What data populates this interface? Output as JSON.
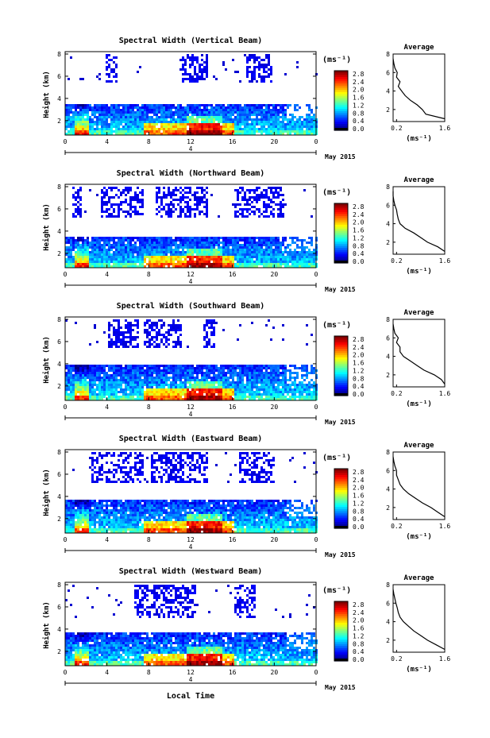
{
  "figure": {
    "xlabel": "Local Time",
    "date_label": "May 2015",
    "day_label": "4",
    "ylabel": "Height (km)",
    "colorbar_unit": "(ms⁻¹)",
    "avg_title": "Average",
    "avg_xlabel": "(ms⁻¹)"
  },
  "chart_data": [
    {
      "type": "heatmap",
      "title": "Spectral Width (Vertical Beam)",
      "xlabel": "Local Time",
      "ylabel": "Height (km)",
      "xlim": [
        0,
        24
      ],
      "ylim": [
        0.7,
        8
      ],
      "xticks": [
        "0",
        "4",
        "8",
        "12",
        "16",
        "20",
        "0"
      ],
      "yticks": [
        "2",
        "4",
        "6",
        "8"
      ],
      "colorbar": {
        "label": "(ms⁻¹)",
        "range": [
          0,
          2.8
        ],
        "ticks": [
          "2.8",
          "2.4",
          "2.0",
          "1.6",
          "1.2",
          "0.8",
          "0.4",
          "0.0"
        ]
      },
      "lower_layer_top_km": 3.7,
      "upper_echo_km": [
        5.5,
        8
      ],
      "upper_echo_hours": [
        [
          3.8,
          5.0
        ],
        [
          11.0,
          13.6
        ],
        [
          17.2,
          19.8
        ]
      ],
      "average_profile": {
        "title": "Average",
        "xlabel": "(ms⁻¹)",
        "xticks": [
          "0.2",
          "1.6"
        ],
        "yticks": [
          "2",
          "4",
          "6",
          "8"
        ],
        "height_km": [
          1.0,
          1.5,
          2.0,
          2.5,
          3.0,
          3.5,
          4.0,
          4.5,
          5.0,
          5.5,
          6.0,
          6.5,
          7.0,
          7.5
        ],
        "width_ms": [
          1.6,
          1.05,
          0.95,
          0.8,
          0.6,
          0.45,
          0.35,
          0.25,
          0.3,
          0.2,
          0.22,
          0.15,
          0.12,
          0.1
        ]
      }
    },
    {
      "type": "heatmap",
      "title": "Spectral Width (Northward Beam)",
      "xlabel": "Local Time",
      "ylabel": "Height (km)",
      "xlim": [
        0,
        24
      ],
      "ylim": [
        0.7,
        8
      ],
      "xticks": [
        "0",
        "4",
        "8",
        "12",
        "16",
        "20",
        "0"
      ],
      "yticks": [
        "2",
        "4",
        "6",
        "8"
      ],
      "colorbar": {
        "label": "(ms⁻¹)",
        "range": [
          0,
          2.8
        ],
        "ticks": [
          "2.8",
          "2.4",
          "2.0",
          "1.6",
          "1.2",
          "0.8",
          "0.4",
          "0.0"
        ]
      },
      "lower_layer_top_km": 3.6,
      "upper_echo_km": [
        5.4,
        8
      ],
      "upper_echo_hours": [
        [
          0.5,
          1.5
        ],
        [
          3.2,
          7.5
        ],
        [
          8.5,
          13.5
        ],
        [
          16.0,
          20.8
        ]
      ],
      "average_profile": {
        "title": "Average",
        "xlabel": "(ms⁻¹)",
        "xticks": [
          "0.2",
          "1.6"
        ],
        "yticks": [
          "2",
          "4",
          "6",
          "8"
        ],
        "height_km": [
          1.0,
          1.5,
          2.0,
          2.5,
          3.0,
          3.5,
          4.0,
          4.5,
          5.0,
          5.5,
          6.0,
          6.5,
          7.0,
          7.5
        ],
        "width_ms": [
          1.6,
          1.4,
          1.1,
          0.9,
          0.7,
          0.45,
          0.3,
          0.25,
          0.22,
          0.2,
          0.15,
          0.12,
          0.1,
          0.1
        ]
      }
    },
    {
      "type": "heatmap",
      "title": "Spectral Width (Southward Beam)",
      "xlabel": "Local Time",
      "ylabel": "Height (km)",
      "xlim": [
        0,
        24
      ],
      "ylim": [
        0.7,
        8
      ],
      "xticks": [
        "0",
        "4",
        "8",
        "12",
        "16",
        "20",
        "0"
      ],
      "yticks": [
        "2",
        "4",
        "6",
        "8"
      ],
      "colorbar": {
        "label": "(ms⁻¹)",
        "range": [
          0,
          2.8
        ],
        "ticks": [
          "2.8",
          "2.4",
          "2.0",
          "1.6",
          "1.2",
          "0.8",
          "0.4",
          "0.0"
        ]
      },
      "lower_layer_top_km": 4.0,
      "upper_echo_km": [
        5.5,
        8
      ],
      "upper_echo_hours": [
        [
          4.0,
          7.0
        ],
        [
          7.5,
          11.0
        ],
        [
          13.0,
          14.2
        ]
      ],
      "average_profile": {
        "title": "Average",
        "xlabel": "(ms⁻¹)",
        "xticks": [
          "0.2",
          "1.6"
        ],
        "yticks": [
          "2",
          "4",
          "6",
          "8"
        ],
        "height_km": [
          1.0,
          1.5,
          2.0,
          2.5,
          3.0,
          3.5,
          4.0,
          4.5,
          5.0,
          5.5,
          6.0,
          6.5,
          7.0,
          7.5
        ],
        "width_ms": [
          1.6,
          1.5,
          1.3,
          1.0,
          0.8,
          0.6,
          0.4,
          0.3,
          0.3,
          0.2,
          0.25,
          0.15,
          0.12,
          0.1
        ]
      }
    },
    {
      "type": "heatmap",
      "title": "Spectral Width (Eastward Beam)",
      "xlabel": "Local Time",
      "ylabel": "Height (km)",
      "xlim": [
        0,
        24
      ],
      "ylim": [
        0.7,
        8
      ],
      "xticks": [
        "0",
        "4",
        "8",
        "12",
        "16",
        "20",
        "0"
      ],
      "yticks": [
        "2",
        "4",
        "6",
        "8"
      ],
      "colorbar": {
        "label": "(ms⁻¹)",
        "range": [
          0,
          2.8
        ],
        "ticks": [
          "2.8",
          "2.4",
          "2.0",
          "1.6",
          "1.2",
          "0.8",
          "0.4",
          "0.0"
        ]
      },
      "lower_layer_top_km": 3.8,
      "upper_echo_km": [
        5.4,
        8
      ],
      "upper_echo_hours": [
        [
          2.5,
          7.5
        ],
        [
          8.0,
          13.5
        ],
        [
          16.5,
          20.0
        ]
      ],
      "average_profile": {
        "title": "Average",
        "xlabel": "(ms⁻¹)",
        "xticks": [
          "0.2",
          "1.6"
        ],
        "yticks": [
          "2",
          "4",
          "6",
          "8"
        ],
        "height_km": [
          1.0,
          1.5,
          2.0,
          2.5,
          3.0,
          3.5,
          4.0,
          4.5,
          5.0,
          5.5,
          6.0,
          6.5,
          7.0,
          7.5
        ],
        "width_ms": [
          1.6,
          1.4,
          1.2,
          0.95,
          0.75,
          0.55,
          0.4,
          0.3,
          0.25,
          0.2,
          0.2,
          0.15,
          0.12,
          0.1
        ]
      }
    },
    {
      "type": "heatmap",
      "title": "Spectral Width (Westward Beam)",
      "xlabel": "Local Time",
      "ylabel": "Height (km)",
      "xlim": [
        0,
        24
      ],
      "ylim": [
        0.7,
        8
      ],
      "xticks": [
        "0",
        "4",
        "8",
        "12",
        "16",
        "20",
        "0"
      ],
      "yticks": [
        "2",
        "4",
        "6",
        "8"
      ],
      "colorbar": {
        "label": "(ms⁻¹)",
        "range": [
          0,
          2.8
        ],
        "ticks": [
          "2.8",
          "2.4",
          "2.0",
          "1.6",
          "1.2",
          "0.8",
          "0.4",
          "0.0"
        ]
      },
      "lower_layer_top_km": 3.8,
      "upper_echo_km": [
        5.2,
        8
      ],
      "upper_echo_hours": [
        [
          6.5,
          12.5
        ],
        [
          16.0,
          18.0
        ]
      ],
      "average_profile": {
        "title": "Average",
        "xlabel": "(ms⁻¹)",
        "xticks": [
          "0.2",
          "1.6"
        ],
        "yticks": [
          "2",
          "4",
          "6",
          "8"
        ],
        "height_km": [
          1.0,
          1.5,
          2.0,
          2.5,
          3.0,
          3.5,
          4.0,
          4.5,
          5.0,
          5.5,
          6.0,
          6.5,
          7.0,
          7.5
        ],
        "width_ms": [
          1.6,
          1.35,
          1.1,
          0.9,
          0.7,
          0.55,
          0.4,
          0.3,
          0.25,
          0.22,
          0.18,
          0.15,
          0.12,
          0.1
        ]
      }
    }
  ]
}
